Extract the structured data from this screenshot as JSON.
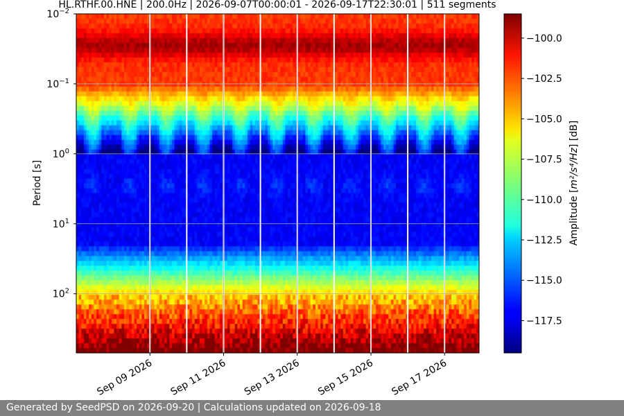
{
  "chart_data": {
    "type": "heatmap",
    "title": "HL.RTHF.00.HNE | 200.0Hz | 2026-09-07T00:00:01 - 2026-09-17T22:30:01 | 511 segments",
    "ylabel": "Period [s]",
    "colorbar_label_prefix": "Amplitude [",
    "colorbar_label_math": "m²/s⁴/Hz",
    "colorbar_label_suffix": "] [dB]",
    "y_scale": "log",
    "y_inverted": true,
    "ylim": [
      0.01,
      700
    ],
    "y_ticks": [
      {
        "value": 0.01,
        "base": "10",
        "exp": "−2"
      },
      {
        "value": 0.1,
        "base": "10",
        "exp": "−1"
      },
      {
        "value": 1,
        "base": "10",
        "exp": "0"
      },
      {
        "value": 10,
        "base": "10",
        "exp": "1"
      },
      {
        "value": 100,
        "base": "10",
        "exp": "2"
      }
    ],
    "xlim": [
      "2026-09-07T00:00:01",
      "2026-09-17T22:30:01"
    ],
    "x_ticks": [
      {
        "date": "2026-09-09",
        "label": "Sep 09 2026"
      },
      {
        "date": "2026-09-11",
        "label": "Sep 11 2026"
      },
      {
        "date": "2026-09-13",
        "label": "Sep 13 2026"
      },
      {
        "date": "2026-09-15",
        "label": "Sep 15 2026"
      },
      {
        "date": "2026-09-17",
        "label": "Sep 17 2026"
      }
    ],
    "colorbar_range": [
      -119.5,
      -98.5
    ],
    "colorbar_ticks": [
      -100.0,
      -102.5,
      -105.0,
      -107.5,
      -110.0,
      -112.5,
      -115.0,
      -117.5
    ],
    "colormap": "jet",
    "grid": true,
    "data_gaps": [
      "2026-09-09",
      "2026-09-10",
      "2026-09-11",
      "2026-09-12",
      "2026-09-13",
      "2026-09-14",
      "2026-09-15",
      "2026-09-16",
      "2026-09-17"
    ]
  },
  "footer": {
    "text": "Generated by SeedPSD on 2026-09-20 | Calculations updated on 2026-09-18"
  }
}
